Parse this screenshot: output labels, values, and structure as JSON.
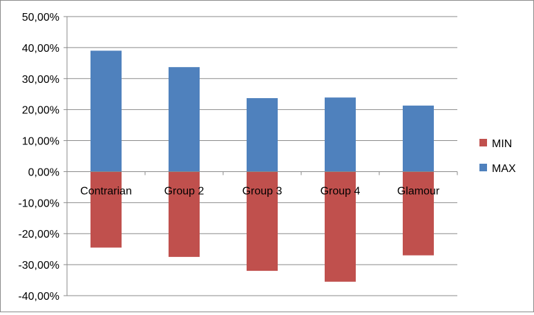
{
  "chart_data": {
    "type": "bar",
    "stacked": true,
    "categories": [
      "Contrarian",
      "Group 2",
      "Group 3",
      "Group 4",
      "Glamour"
    ],
    "series": [
      {
        "name": "MIN",
        "color": "#C0504D",
        "values": [
          -24.5,
          -27.5,
          -32.0,
          -35.5,
          -27.0
        ]
      },
      {
        "name": "MAX",
        "color": "#4F81BD",
        "values": [
          39.0,
          33.7,
          23.7,
          23.9,
          21.3
        ]
      }
    ],
    "ylim": [
      -40,
      50
    ],
    "ytick_step": 10,
    "ytick_labels": [
      "50,00%",
      "40,00%",
      "30,00%",
      "20,00%",
      "10,00%",
      "0,00%",
      "-10,00%",
      "-20,00%",
      "-30,00%",
      "-40,00%"
    ],
    "grid": true,
    "legend": "right",
    "title": "",
    "xlabel": "",
    "ylabel": ""
  }
}
